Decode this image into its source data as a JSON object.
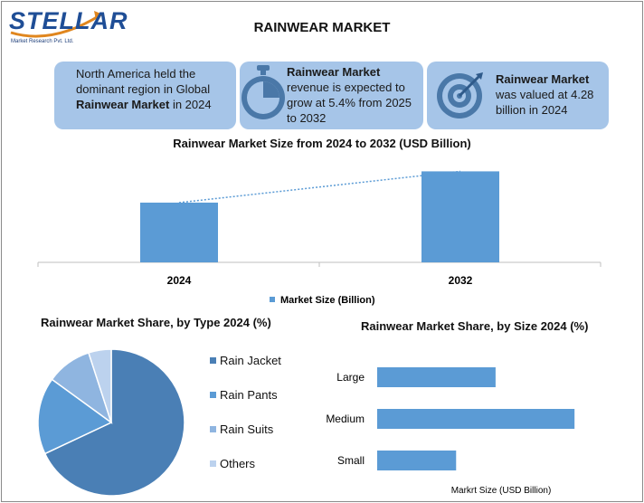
{
  "logo": {
    "word": "STELLAR",
    "sub": "Market Research Pvt. Ltd."
  },
  "title": "RAINWEAR MARKET",
  "info_boxes": [
    {
      "pre": "North America held the dominant region in Global ",
      "bold": "Rainwear Market",
      "post": " in 2024",
      "icon": "globe-icon"
    },
    {
      "pre": "",
      "bold": "Rainwear Market",
      "post": " revenue is expected to grow at 5.4% from 2025 to 2032",
      "icon": "stopwatch-icon"
    },
    {
      "pre": "",
      "bold": "Rainwear Market",
      "post": " was valued at 4.28 billion in 2024",
      "icon": "target-icon"
    }
  ],
  "colors": {
    "bar": "#5b9bd5",
    "box": "#a6c5e8",
    "pie_dark": "#4a7fb5",
    "pie_mid": "#5b9bd5",
    "pie_light": "#8fb5e0",
    "pie_lightest": "#bcd2ee"
  },
  "chart_data": [
    {
      "type": "bar",
      "title": "Rainwear Market Size from 2024 to 2032 (USD Billion)",
      "categories": [
        "2024",
        "2032"
      ],
      "series": [
        {
          "name": "Market Size (Billion)",
          "values": [
            4.28,
            6.52
          ]
        }
      ],
      "trendline": "dotted",
      "ylim": [
        0,
        7
      ]
    },
    {
      "type": "pie",
      "title": "Rainwear Market Share, by Type 2024 (%)",
      "labels": [
        "Rain Jacket",
        "Rain Pants",
        "Rain Suits",
        "Others"
      ],
      "values": [
        68,
        17,
        10,
        5
      ],
      "legend": "right"
    },
    {
      "type": "bar",
      "orientation": "horizontal",
      "title": "Rainwear Market Share, by Size 2024 (%)",
      "categories": [
        "Large",
        "Medium",
        "Small"
      ],
      "values": [
        30,
        50,
        20
      ],
      "xlabel": "Markrt Size (USD Billion)",
      "xlim": [
        0,
        55
      ]
    }
  ]
}
